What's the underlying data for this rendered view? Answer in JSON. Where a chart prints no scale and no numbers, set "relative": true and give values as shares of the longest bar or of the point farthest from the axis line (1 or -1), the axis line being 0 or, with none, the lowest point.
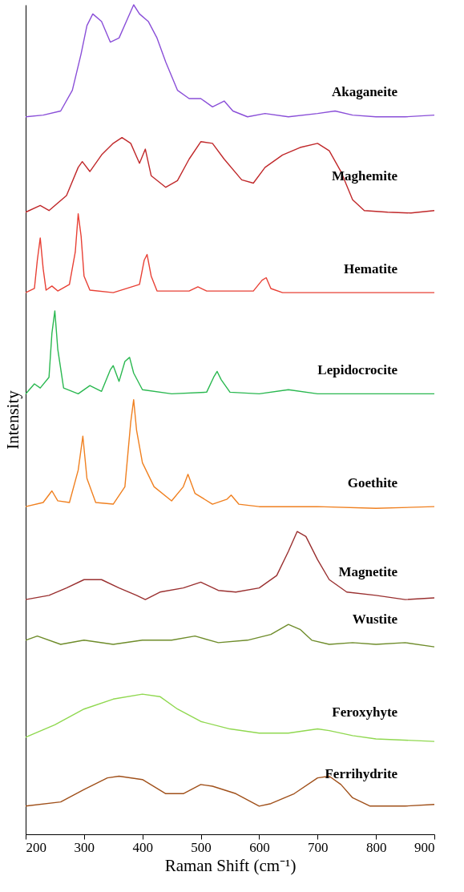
{
  "chart_data": {
    "type": "line",
    "relative": true,
    "xlabel": "Raman Shift (cm⁻¹)",
    "ylabel": "Intensity",
    "xlim": [
      200,
      900
    ],
    "xticks": [
      200,
      300,
      400,
      500,
      600,
      700,
      800,
      900
    ],
    "grid": false,
    "legend": false,
    "marker": "none",
    "line_style": "solid",
    "series": [
      {
        "name": "Akaganeite",
        "color": "#8a4fd8",
        "x": [
          200,
          230,
          260,
          280,
          295,
          305,
          315,
          330,
          345,
          360,
          375,
          385,
          395,
          410,
          425,
          440,
          460,
          480,
          500,
          520,
          540,
          555,
          580,
          610,
          650,
          700,
          730,
          760,
          800,
          850,
          900
        ],
        "values": [
          0.865,
          0.867,
          0.872,
          0.897,
          0.941,
          0.975,
          0.989,
          0.98,
          0.955,
          0.96,
          0.984,
          1.0,
          0.989,
          0.98,
          0.96,
          0.931,
          0.897,
          0.887,
          0.887,
          0.877,
          0.884,
          0.872,
          0.865,
          0.869,
          0.865,
          0.869,
          0.872,
          0.867,
          0.865,
          0.865,
          0.867
        ]
      },
      {
        "name": "Maghemite",
        "color": "#c0282a",
        "x": [
          200,
          225,
          240,
          270,
          290,
          297,
          310,
          330,
          350,
          365,
          380,
          395,
          405,
          415,
          440,
          460,
          480,
          500,
          520,
          540,
          570,
          590,
          610,
          640,
          670,
          700,
          720,
          740,
          760,
          780,
          820,
          860,
          900
        ],
        "values": [
          0.75,
          0.758,
          0.752,
          0.77,
          0.804,
          0.811,
          0.799,
          0.819,
          0.833,
          0.84,
          0.833,
          0.809,
          0.826,
          0.794,
          0.78,
          0.788,
          0.814,
          0.835,
          0.833,
          0.814,
          0.789,
          0.785,
          0.804,
          0.819,
          0.828,
          0.833,
          0.824,
          0.799,
          0.765,
          0.752,
          0.75,
          0.749,
          0.752
        ]
      },
      {
        "name": "Hematite",
        "color": "#e84035",
        "x": [
          200,
          215,
          220,
          225,
          230,
          235,
          245,
          255,
          275,
          285,
          290,
          295,
          300,
          310,
          350,
          395,
          403,
          408,
          415,
          425,
          480,
          495,
          510,
          590,
          605,
          612,
          620,
          640,
          700,
          800,
          900
        ],
        "values": [
          0.653,
          0.658,
          0.692,
          0.719,
          0.682,
          0.656,
          0.661,
          0.655,
          0.663,
          0.702,
          0.748,
          0.721,
          0.673,
          0.656,
          0.653,
          0.663,
          0.692,
          0.699,
          0.673,
          0.655,
          0.655,
          0.66,
          0.655,
          0.655,
          0.668,
          0.671,
          0.658,
          0.653,
          0.653,
          0.653,
          0.653
        ]
      },
      {
        "name": "Lepidocrocite",
        "color": "#2ab850",
        "x": [
          200,
          215,
          225,
          240,
          245,
          250,
          255,
          265,
          290,
          310,
          330,
          345,
          350,
          360,
          370,
          378,
          385,
          400,
          450,
          510,
          522,
          528,
          535,
          550,
          600,
          650,
          700,
          800,
          900
        ],
        "values": [
          0.531,
          0.543,
          0.538,
          0.551,
          0.604,
          0.631,
          0.585,
          0.538,
          0.531,
          0.541,
          0.534,
          0.56,
          0.565,
          0.546,
          0.57,
          0.575,
          0.556,
          0.536,
          0.531,
          0.533,
          0.551,
          0.558,
          0.548,
          0.533,
          0.531,
          0.536,
          0.531,
          0.531,
          0.531
        ]
      },
      {
        "name": "Goethite",
        "color": "#f08020",
        "x": [
          200,
          230,
          245,
          255,
          275,
          290,
          298,
          305,
          320,
          350,
          370,
          380,
          385,
          390,
          400,
          420,
          450,
          470,
          478,
          490,
          520,
          545,
          552,
          565,
          600,
          700,
          800,
          900
        ],
        "values": [
          0.395,
          0.4,
          0.414,
          0.402,
          0.4,
          0.439,
          0.48,
          0.429,
          0.4,
          0.398,
          0.419,
          0.497,
          0.524,
          0.487,
          0.448,
          0.419,
          0.402,
          0.419,
          0.434,
          0.411,
          0.398,
          0.404,
          0.409,
          0.398,
          0.395,
          0.395,
          0.393,
          0.395
        ]
      },
      {
        "name": "Magnetite",
        "color": "#9a3030",
        "x": [
          200,
          240,
          270,
          300,
          330,
          360,
          390,
          405,
          430,
          470,
          500,
          530,
          560,
          600,
          630,
          650,
          665,
          680,
          700,
          720,
          750,
          800,
          850,
          900
        ],
        "values": [
          0.283,
          0.288,
          0.297,
          0.307,
          0.307,
          0.297,
          0.288,
          0.283,
          0.292,
          0.297,
          0.304,
          0.294,
          0.292,
          0.297,
          0.312,
          0.341,
          0.365,
          0.359,
          0.331,
          0.307,
          0.292,
          0.288,
          0.283,
          0.285
        ]
      },
      {
        "name": "Wustite",
        "color": "#6e8c2a",
        "x": [
          200,
          220,
          260,
          300,
          350,
          400,
          450,
          490,
          530,
          580,
          620,
          650,
          670,
          690,
          720,
          760,
          800,
          850,
          900
        ],
        "values": [
          0.234,
          0.239,
          0.229,
          0.234,
          0.229,
          0.234,
          0.234,
          0.239,
          0.231,
          0.234,
          0.241,
          0.253,
          0.247,
          0.234,
          0.229,
          0.231,
          0.229,
          0.231,
          0.226
        ]
      },
      {
        "name": "Feroxyhyte",
        "color": "#90d850",
        "x": [
          200,
          250,
          300,
          350,
          400,
          430,
          460,
          500,
          550,
          600,
          650,
          700,
          720,
          760,
          800,
          900
        ],
        "values": [
          0.117,
          0.132,
          0.151,
          0.163,
          0.169,
          0.166,
          0.151,
          0.136,
          0.127,
          0.122,
          0.122,
          0.127,
          0.125,
          0.119,
          0.115,
          0.112
        ]
      },
      {
        "name": "Ferrihydrite",
        "color": "#a0501a",
        "x": [
          200,
          260,
          300,
          340,
          360,
          400,
          440,
          470,
          500,
          520,
          560,
          600,
          620,
          660,
          700,
          720,
          740,
          760,
          790,
          850,
          900
        ],
        "values": [
          0.034,
          0.039,
          0.054,
          0.068,
          0.07,
          0.066,
          0.049,
          0.049,
          0.06,
          0.058,
          0.049,
          0.034,
          0.037,
          0.049,
          0.068,
          0.07,
          0.06,
          0.044,
          0.034,
          0.034,
          0.036
        ]
      }
    ]
  }
}
